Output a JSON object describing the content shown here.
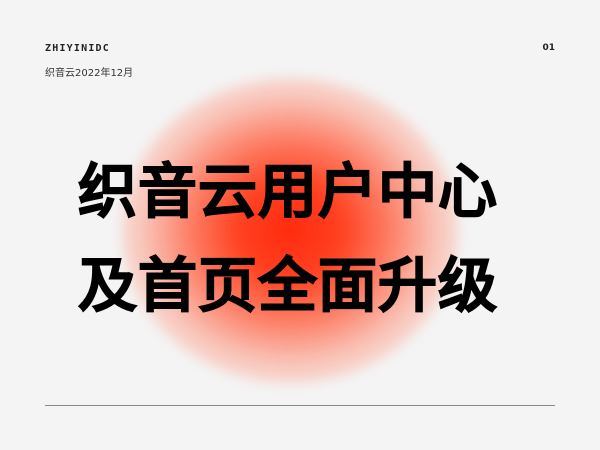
{
  "header": {
    "brand": "ZHIYINIDC",
    "date": "织音云2022年12月",
    "page_number": "01"
  },
  "headline": {
    "line1": "织音云用户中心",
    "line2": "及首页全面升级"
  },
  "colors": {
    "background": "#f4f4f4",
    "glow": "#ff2a0e",
    "text": "#000000"
  }
}
